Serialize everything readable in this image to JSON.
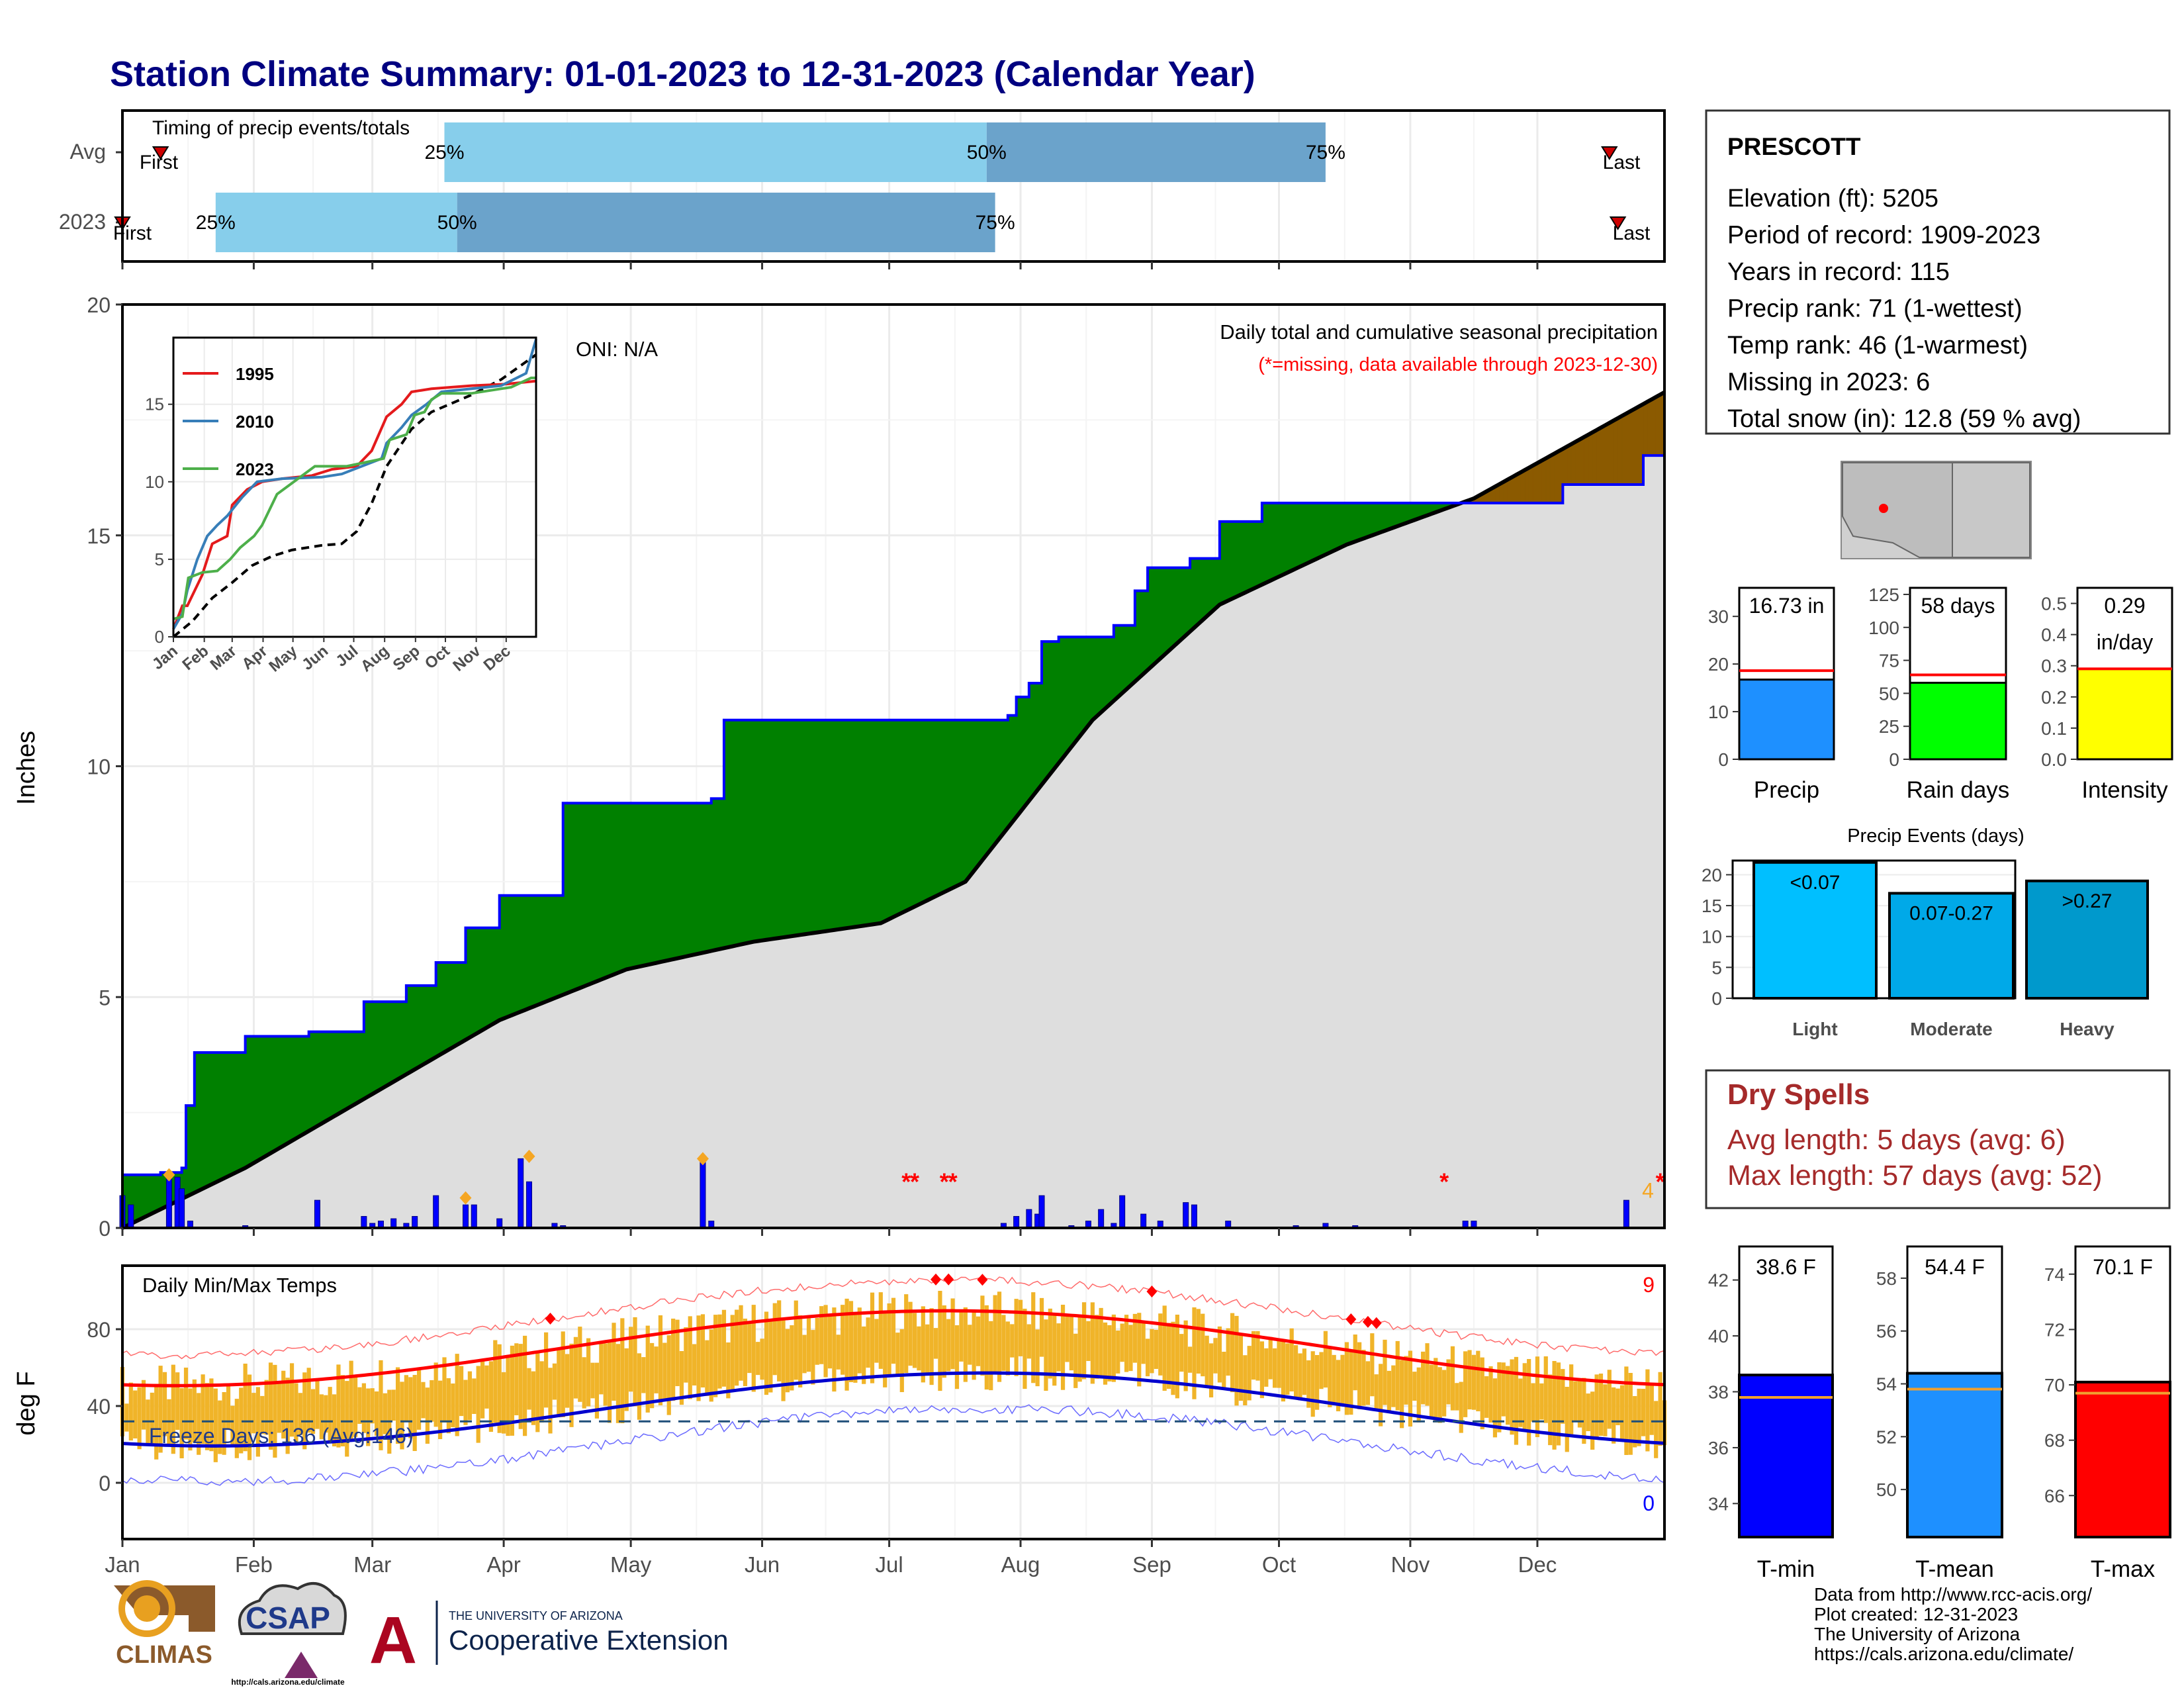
{
  "title": "Station Climate Summary: 01-01-2023 to 12-31-2023 (Calendar Year)",
  "months": [
    "Jan",
    "Feb",
    "Mar",
    "Apr",
    "May",
    "Jun",
    "Jul",
    "Aug",
    "Sep",
    "Oct",
    "Nov",
    "Dec"
  ],
  "timing": {
    "title": "Timing of precip events/totals",
    "rows": [
      {
        "label": "Avg",
        "first": "First",
        "last": "Last",
        "p25": "25%",
        "p50": "50%",
        "p75": "75%"
      },
      {
        "label": "2023",
        "first": "First",
        "last": "Last",
        "p25": "25%",
        "p50": "50%",
        "p75": "75%"
      }
    ]
  },
  "precip": {
    "ylabel": "Inches",
    "yticks": [
      "0",
      "5",
      "10",
      "15",
      "20"
    ],
    "title": "Daily total and cumulative seasonal precipitation",
    "missing_note": "(*=missing, data available through 2023-12-30)",
    "oni": "ONI: N/A",
    "flag_count": "4",
    "missing_marker": "*"
  },
  "inset": {
    "yticks": [
      "0",
      "5",
      "10",
      "15"
    ],
    "xticks": [
      "Jan",
      "Feb",
      "Mar",
      "Apr",
      "May",
      "Jun",
      "Jul",
      "Aug",
      "Sep",
      "Oct",
      "Nov",
      "Dec"
    ],
    "legend": [
      {
        "name": "1995",
        "color": "#e41a1c"
      },
      {
        "name": "2010",
        "color": "#377eb8"
      },
      {
        "name": "2023",
        "color": "#4daf4a"
      }
    ]
  },
  "temps": {
    "ylabel": "deg F",
    "yticks": [
      "0",
      "40",
      "80"
    ],
    "title": "Daily Min/Max Temps",
    "freeze": "Freeze Days: 136 (Avg:146)",
    "hot_count": "9",
    "cold_count": "0"
  },
  "station": {
    "name": "PRESCOTT",
    "lines": [
      "Elevation (ft): 5205",
      "Period of record: 1909-2023",
      "Years in record: 115",
      "Precip rank: 71 (1-wettest)",
      "Temp rank: 46 (1-warmest)",
      "Missing in 2023: 6",
      "Total snow (in): 12.8 (59 % avg)"
    ]
  },
  "mini_bars": {
    "precip": {
      "value_label": "16.73 in",
      "label": "Precip",
      "yticks": [
        "0",
        "10",
        "20",
        "30"
      ],
      "value": 16.73,
      "avg": 18.6,
      "max": 36,
      "color": "#1e90ff"
    },
    "raindays": {
      "value_label": "58 days",
      "label": "Rain days",
      "yticks": [
        "0",
        "25",
        "50",
        "75",
        "100",
        "125"
      ],
      "value": 58,
      "avg": 64,
      "max": 130,
      "color": "#00ff00"
    },
    "intensity": {
      "value_label_1": "0.29",
      "value_label_2": "in/day",
      "label": "Intensity",
      "yticks": [
        "0.0",
        "0.1",
        "0.2",
        "0.3",
        "0.4",
        "0.5"
      ],
      "value": 0.29,
      "avg": 0.29,
      "max": 0.55,
      "color": "#ffff00"
    }
  },
  "events": {
    "title": "Precip Events (days)",
    "yticks": [
      "0",
      "5",
      "10",
      "15",
      "20"
    ],
    "bars": [
      {
        "category": "Light",
        "label": "<0.07",
        "value": 22,
        "color": "#00bfff"
      },
      {
        "category": "Moderate",
        "label": "0.07-0.27",
        "value": 17,
        "color": "#00a9e8"
      },
      {
        "category": "Heavy",
        "label": ">0.27",
        "value": 19,
        "color": "#0099cc"
      }
    ]
  },
  "dry_spells": {
    "title": "Dry Spells",
    "avg_line": "Avg length: 5 days (avg: 6)",
    "max_line": "Max length: 57 days (avg: 52)"
  },
  "temp_bars": [
    {
      "label": "T-min",
      "value_label": "38.6 F",
      "value": 38.6,
      "avg": 37.8,
      "ymin": 32.8,
      "ymax": 43.2,
      "yticks": [
        "34",
        "36",
        "38",
        "40",
        "42"
      ],
      "color": "#0000ff"
    },
    {
      "label": "T-mean",
      "value_label": "54.4 F",
      "value": 54.4,
      "avg": 53.8,
      "ymin": 48.2,
      "ymax": 59.2,
      "yticks": [
        "50",
        "52",
        "54",
        "56",
        "58"
      ],
      "color": "#1e90ff"
    },
    {
      "label": "T-max",
      "value_label": "70.1 F",
      "value": 70.1,
      "avg": 69.7,
      "ymin": 64.5,
      "ymax": 75.0,
      "yticks": [
        "66",
        "68",
        "70",
        "72",
        "74"
      ],
      "color": "#ff0000"
    }
  ],
  "credits": [
    "Data from http://www.rcc-acis.org/",
    "Plot created: 12-31-2023",
    "The University of Arizona",
    "https://cals.arizona.edu/climate/"
  ],
  "logos": {
    "climas": "CLIMAS",
    "csap": "CSAP",
    "csap_url": "http://cals.arizona.edu/climate",
    "ua_small": "THE UNIVERSITY OF ARIZONA",
    "ua_big": "Cooperative Extension",
    "ua_letter": "A"
  },
  "chart_data": {
    "type": "area",
    "title": "Daily total and cumulative seasonal precipitation",
    "ylabel": "Inches",
    "ylim": [
      0,
      20
    ],
    "x_unit": "day of year",
    "series": [
      {
        "name": "2023",
        "x": [
          1,
          10,
          15,
          16,
          18,
          30,
          45,
          58,
          60,
          68,
          75,
          82,
          85,
          90,
          105,
          140,
          143,
          160,
          179,
          200,
          210,
          212,
          215,
          218,
          222,
          235,
          240,
          243,
          253,
          260,
          270,
          308,
          340,
          341,
          360,
          364
        ],
        "y": [
          1.15,
          1.2,
          1.3,
          2.65,
          3.8,
          4.15,
          4.25,
          4.9,
          4.9,
          5.25,
          5.75,
          6.5,
          6.5,
          7.2,
          9.2,
          9.3,
          11.0,
          11.0,
          11.0,
          11.0,
          11.1,
          11.5,
          11.8,
          12.7,
          12.8,
          13.05,
          13.8,
          14.3,
          14.5,
          15.3,
          15.7,
          15.7,
          15.7,
          16.1,
          16.73,
          16.73
        ]
      },
      {
        "x": [
          1,
          30,
          60,
          90,
          120,
          150,
          180,
          200,
          230,
          260,
          290,
          320,
          365
        ],
        "y": [
          0.0,
          1.3,
          2.9,
          4.5,
          5.6,
          6.2,
          6.6,
          7.5,
          11.0,
          13.5,
          14.8,
          15.8,
          18.1
        ]
      }
    ]
  }
}
